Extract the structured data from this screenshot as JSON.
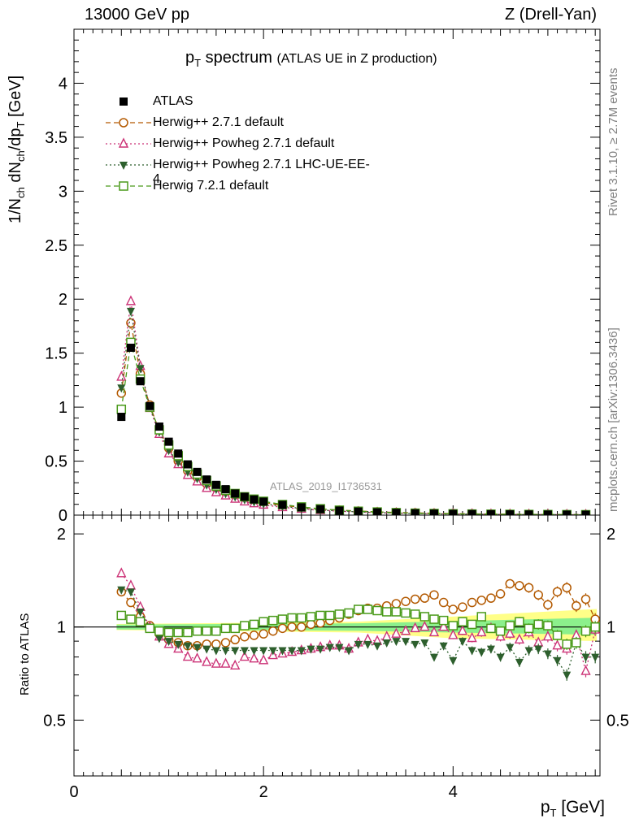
{
  "header": {
    "left": "13000 GeV pp",
    "right": "Z (Drell-Yan)"
  },
  "side_text": {
    "rivet": "Rivet 3.1.10, ≥ 2.7M events",
    "mcplots": "mcplots.cern.ch [arXiv:1306.3436]"
  },
  "chart_data": [
    {
      "type": "scatter",
      "title": "p_T spectrum",
      "title_main": "p",
      "title_sub": "T",
      "title_rest": " spectrum",
      "subtitle": "(ATLAS UE in Z production)",
      "analysis_label": "ATLAS_2019_I1736531",
      "ylabel": "1/N_ch dN_ch/dp_T [GeV]",
      "xlim": [
        0,
        5.55
      ],
      "ylim": [
        0,
        4.5
      ],
      "yticks": [
        "0",
        "0.5",
        "1",
        "1.5",
        "2",
        "2.5",
        "3",
        "3.5",
        "4"
      ],
      "x": [
        0.5,
        0.6,
        0.7,
        0.8,
        0.9,
        1.0,
        1.1,
        1.2,
        1.3,
        1.4,
        1.5,
        1.6,
        1.7,
        1.8,
        1.9,
        2.0,
        2.2,
        2.4,
        2.6,
        2.8,
        3.0,
        3.2,
        3.4,
        3.6,
        3.8,
        4.0,
        4.2,
        4.4,
        4.6,
        4.8,
        5.0,
        5.2,
        5.4
      ],
      "series": [
        {
          "name": "ATLAS",
          "color": "#000000",
          "marker": "filled-square",
          "values": [
            0.91,
            1.55,
            1.24,
            1.01,
            0.82,
            0.68,
            0.57,
            0.47,
            0.4,
            0.33,
            0.28,
            0.24,
            0.2,
            0.17,
            0.145,
            0.125,
            0.095,
            0.072,
            0.055,
            0.042,
            0.033,
            0.026,
            0.021,
            0.017,
            0.014,
            0.012,
            0.01,
            0.0085,
            0.0072,
            0.0062,
            0.0053,
            0.0046,
            0.004
          ]
        },
        {
          "name": "Herwig++ 2.7.1 default",
          "color": "#b35900",
          "marker": "open-circle",
          "dash": "dashed",
          "values": [
            1.13,
            1.78,
            1.31,
            1.02,
            0.78,
            0.62,
            0.5,
            0.41,
            0.35,
            0.29,
            0.25,
            0.21,
            0.18,
            0.155,
            0.135,
            0.118,
            0.09,
            0.072,
            0.057,
            0.046,
            0.038,
            0.03,
            0.025,
            0.021,
            0.017,
            0.014,
            0.012,
            0.01,
            0.0085,
            0.0073,
            0.0062,
            0.0053,
            0.0046
          ]
        },
        {
          "name": "Herwig++ Powheg 2.7.1 default",
          "color": "#cc3377",
          "marker": "open-triangle",
          "dash": "dotted",
          "values": [
            1.28,
            1.98,
            1.38,
            0.99,
            0.75,
            0.57,
            0.47,
            0.37,
            0.31,
            0.25,
            0.21,
            0.18,
            0.15,
            0.125,
            0.108,
            0.095,
            0.072,
            0.057,
            0.045,
            0.036,
            0.029,
            0.023,
            0.019,
            0.015,
            0.013,
            0.011,
            0.0092,
            0.0078,
            0.0067,
            0.0057,
            0.0048,
            0.0041,
            0.0034
          ]
        },
        {
          "name": "Herwig++ Powheg 2.7.1 LHC-UE-EE-4",
          "color": "#2d5f2d",
          "marker": "filled-triangle-down",
          "dash": "dotted",
          "values": [
            1.18,
            1.89,
            1.36,
            1.0,
            0.77,
            0.6,
            0.49,
            0.4,
            0.34,
            0.28,
            0.24,
            0.2,
            0.17,
            0.145,
            0.123,
            0.106,
            0.081,
            0.062,
            0.048,
            0.038,
            0.03,
            0.024,
            0.019,
            0.015,
            0.012,
            0.01,
            0.0085,
            0.0072,
            0.006,
            0.0051,
            0.0044,
            0.0038,
            0.0033
          ]
        },
        {
          "name": "Herwig 7.2.1 default",
          "color": "#4a9a1a",
          "marker": "open-square",
          "dash": "dashed",
          "values": [
            0.98,
            1.6,
            1.26,
            1.0,
            0.79,
            0.65,
            0.55,
            0.45,
            0.38,
            0.32,
            0.27,
            0.23,
            0.2,
            0.17,
            0.148,
            0.128,
            0.098,
            0.076,
            0.059,
            0.046,
            0.036,
            0.029,
            0.023,
            0.018,
            0.015,
            0.012,
            0.01,
            0.0086,
            0.0073,
            0.0063,
            0.0054,
            0.0046,
            0.004
          ]
        }
      ]
    },
    {
      "type": "scatter",
      "ylabel": "Ratio to ATLAS",
      "xlabel": "p_T [GeV]",
      "xlabel_main": "p",
      "xlabel_sub": "T",
      "xlabel_rest": " [GeV]",
      "xlim": [
        0,
        5.55
      ],
      "ylim": [
        0.33,
        2.3
      ],
      "xticks": [
        "0",
        "2",
        "4"
      ],
      "yticks": [
        "0.5",
        "1",
        "2"
      ],
      "yscale": "log",
      "x": [
        0.5,
        0.6,
        0.7,
        0.8,
        0.9,
        1.0,
        1.1,
        1.2,
        1.3,
        1.4,
        1.5,
        1.6,
        1.7,
        1.8,
        1.9,
        2.0,
        2.1,
        2.2,
        2.3,
        2.4,
        2.5,
        2.6,
        2.7,
        2.8,
        2.9,
        3.0,
        3.1,
        3.2,
        3.3,
        3.4,
        3.5,
        3.6,
        3.7,
        3.8,
        3.9,
        4.0,
        4.1,
        4.2,
        4.3,
        4.4,
        4.5,
        4.6,
        4.7,
        4.8,
        4.9,
        5.0,
        5.1,
        5.2,
        5.3,
        5.4,
        5.5
      ],
      "band_total": 0.09,
      "band_stat": 0.04,
      "series": [
        {
          "name": "Herwig++ 2.7.1 default",
          "color": "#b35900",
          "marker": "open-circle",
          "dash": "dashed",
          "values": [
            1.3,
            1.2,
            1.08,
            1.01,
            0.95,
            0.91,
            0.89,
            0.87,
            0.87,
            0.88,
            0.88,
            0.89,
            0.91,
            0.93,
            0.94,
            0.95,
            0.97,
            0.99,
            1.0,
            1.0,
            1.02,
            1.03,
            1.05,
            1.07,
            1.1,
            1.13,
            1.15,
            1.15,
            1.17,
            1.19,
            1.21,
            1.23,
            1.24,
            1.27,
            1.2,
            1.14,
            1.16,
            1.2,
            1.22,
            1.24,
            1.28,
            1.38,
            1.36,
            1.34,
            1.27,
            1.18,
            1.3,
            1.34,
            1.17,
            1.23,
            1.06
          ]
        },
        {
          "name": "Herwig++ Powheg 2.7.1 default",
          "color": "#cc3377",
          "marker": "open-triangle",
          "dash": "dotted",
          "values": [
            1.49,
            1.36,
            1.16,
            1.0,
            0.93,
            0.88,
            0.85,
            0.8,
            0.79,
            0.77,
            0.76,
            0.76,
            0.75,
            0.8,
            0.79,
            0.78,
            0.81,
            0.82,
            0.83,
            0.84,
            0.85,
            0.86,
            0.87,
            0.87,
            0.85,
            0.89,
            0.91,
            0.9,
            0.93,
            0.95,
            0.97,
            0.99,
            1.0,
            0.96,
            1.0,
            0.94,
            0.97,
            0.92,
            0.96,
            0.99,
            0.93,
            0.95,
            0.91,
            0.96,
            0.89,
            0.93,
            0.87,
            0.85,
            0.94,
            0.72,
            0.98
          ]
        },
        {
          "name": "Herwig++ Powheg 2.7.1 LHC-UE-EE-4",
          "color": "#2d5f2d",
          "marker": "filled-triangle-down",
          "dash": "dotted",
          "values": [
            1.32,
            1.3,
            1.12,
            1.0,
            0.92,
            0.9,
            0.88,
            0.87,
            0.86,
            0.85,
            0.84,
            0.84,
            0.84,
            0.84,
            0.84,
            0.84,
            0.84,
            0.84,
            0.84,
            0.84,
            0.85,
            0.85,
            0.86,
            0.86,
            0.84,
            0.88,
            0.88,
            0.87,
            0.89,
            0.9,
            0.9,
            0.88,
            0.89,
            0.8,
            0.87,
            0.78,
            0.9,
            0.84,
            0.83,
            0.85,
            0.8,
            0.86,
            0.77,
            0.84,
            0.85,
            0.82,
            0.78,
            0.7,
            0.89,
            0.8,
            0.8
          ]
        },
        {
          "name": "Herwig 7.2.1 default",
          "color": "#4a9a1a",
          "marker": "open-square",
          "dash": "dashed",
          "values": [
            1.09,
            1.06,
            1.04,
            0.99,
            0.97,
            0.96,
            0.96,
            0.96,
            0.97,
            0.97,
            0.97,
            0.99,
            0.99,
            1.01,
            1.02,
            1.04,
            1.05,
            1.06,
            1.07,
            1.07,
            1.08,
            1.09,
            1.09,
            1.1,
            1.11,
            1.14,
            1.14,
            1.13,
            1.12,
            1.12,
            1.11,
            1.1,
            1.08,
            1.06,
            1.05,
            1.01,
            1.04,
            1.02,
            1.08,
            0.99,
            0.97,
            1.01,
            1.04,
            0.99,
            1.02,
            1.01,
            0.94,
            0.88,
            0.89,
            0.97,
            1.0
          ]
        }
      ]
    }
  ]
}
